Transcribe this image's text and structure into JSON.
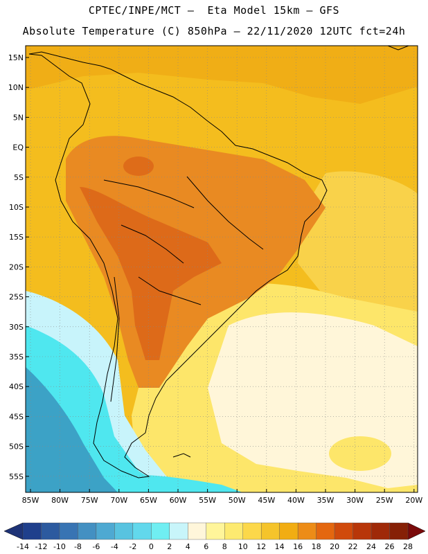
{
  "header": {
    "line1": "CPTEC/INPE/MCT –  Eta Model 15km – GFS",
    "line2": "Absolute Temperature (C) 850hPa – 22/11/2020 12UTC fct=24h"
  },
  "map": {
    "lat_labels": [
      "15N",
      "10N",
      "5N",
      "EQ",
      "5S",
      "10S",
      "15S",
      "20S",
      "25S",
      "30S",
      "35S",
      "40S",
      "45S",
      "50S",
      "55S"
    ],
    "lon_labels": [
      "85W",
      "80W",
      "75W",
      "70W",
      "65W",
      "60W",
      "55W",
      "50W",
      "45W",
      "40W",
      "35W",
      "30W",
      "25W",
      "20W"
    ],
    "field": "Absolute Temperature (C) at 850hPa",
    "colors": {
      "ocean_warm": "#f4bd1e",
      "land_hot": "#e98a22",
      "land_hotter": "#db6418",
      "coast_cool": "#fde66a",
      "pale": "#fff6d9",
      "cyan_light": "#c8f4fb",
      "cyan": "#4fe7ef",
      "blue": "#3ca2c6"
    }
  },
  "colorbar": {
    "labels": [
      "-14",
      "-12",
      "-10",
      "-8",
      "-6",
      "-4",
      "-2",
      "0",
      "2",
      "4",
      "6",
      "8",
      "10",
      "12",
      "14",
      "16",
      "18",
      "20",
      "22",
      "24",
      "26",
      "28"
    ],
    "colors": [
      "#1f3f8c",
      "#2c5a9f",
      "#3874b3",
      "#4390c2",
      "#4ea9d2",
      "#58c3e0",
      "#62d8ec",
      "#70eef2",
      "#c8f5fa",
      "#fff6da",
      "#fff59a",
      "#fdea70",
      "#fcd84a",
      "#f5c42b",
      "#f2ad12",
      "#ed8c17",
      "#e4670f",
      "#d04a0c",
      "#b83609",
      "#9f2908",
      "#862006"
    ],
    "under_color": "#1e3377",
    "over_color": "#7a0a0a"
  }
}
